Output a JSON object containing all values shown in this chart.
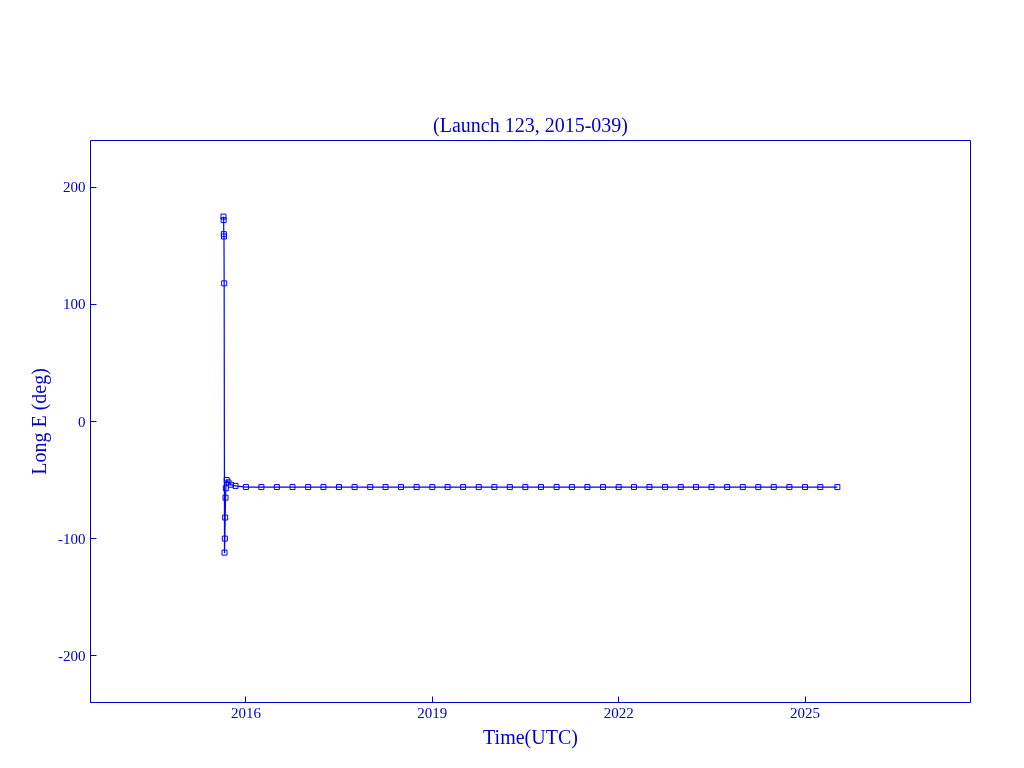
{
  "chart_data": {
    "type": "line",
    "title": "(Launch 123, 2015-039)",
    "xlabel": "Time(UTC)",
    "ylabel": "Long E (deg)",
    "xlim": [
      "2013-07-01",
      "2027-09-01"
    ],
    "ylim": [
      -240,
      240
    ],
    "xticks": [
      "2016",
      "2019",
      "2022",
      "2025"
    ],
    "yticks": [
      -200,
      -100,
      0,
      100,
      200
    ],
    "grid": false,
    "marker": "square",
    "line_style": "solid",
    "series": [
      {
        "color": "#0000ff",
        "x": [
          "2015-08-22",
          "2015-08-23",
          "2015-08-24",
          "2015-08-25",
          "2015-08-26",
          "2015-08-28",
          "2015-08-30",
          "2015-09-01",
          "2015-09-03",
          "2015-09-05",
          "2015-09-10",
          "2015-09-20",
          "2015-10-05",
          "2015-11-01",
          "2016-01-01",
          "2016-04-01",
          "2016-07-01",
          "2016-10-01",
          "2017-01-01",
          "2017-04-01",
          "2017-07-01",
          "2017-10-01",
          "2018-01-01",
          "2018-04-01",
          "2018-07-01",
          "2018-10-01",
          "2019-01-01",
          "2019-04-01",
          "2019-07-01",
          "2019-10-01",
          "2020-01-01",
          "2020-04-01",
          "2020-07-01",
          "2020-10-01",
          "2021-01-01",
          "2021-04-01",
          "2021-07-01",
          "2021-10-01",
          "2022-01-01",
          "2022-04-01",
          "2022-07-01",
          "2022-10-01",
          "2023-01-01",
          "2023-04-01",
          "2023-07-01",
          "2023-10-01",
          "2024-01-01",
          "2024-04-01",
          "2024-07-01",
          "2024-10-01",
          "2025-01-01",
          "2025-04-01",
          "2025-07-10"
        ],
        "values": [
          175,
          172,
          160,
          158,
          118,
          -112,
          -100,
          -82,
          -65,
          -57,
          -50,
          -52,
          -54,
          -55,
          -56,
          -56,
          -56,
          -56,
          -56,
          -56,
          -56,
          -56,
          -56,
          -56,
          -56,
          -56,
          -56,
          -56,
          -56,
          -56,
          -56,
          -56,
          -56,
          -56,
          -56,
          -56,
          -56,
          -56,
          -56,
          -56,
          -56,
          -56,
          -56,
          -56,
          -56,
          -56,
          -56,
          -56,
          -56,
          -56,
          -56,
          -56,
          -56
        ]
      }
    ]
  }
}
